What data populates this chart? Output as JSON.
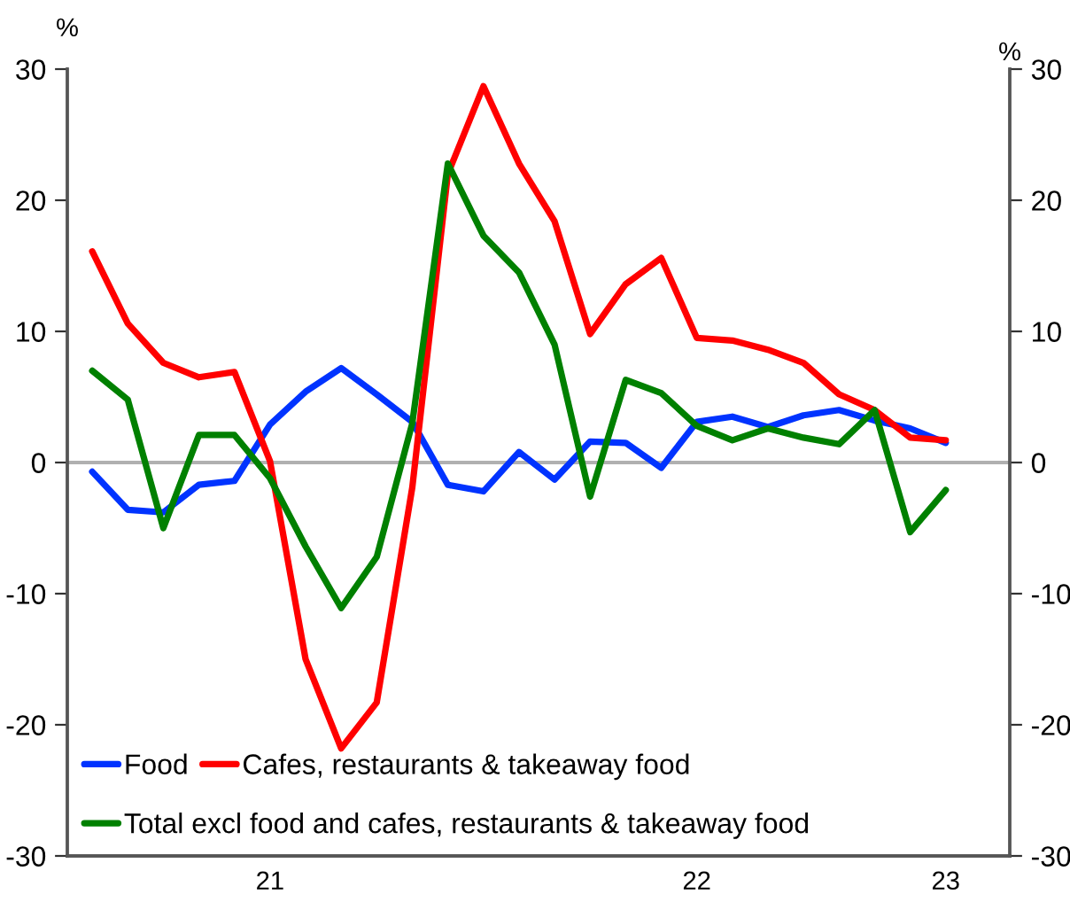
{
  "chart_data": {
    "type": "line",
    "ylabel": "%",
    "y2label": "%",
    "categories": [
      null,
      null,
      null,
      null,
      null,
      "21",
      null,
      null,
      null,
      null,
      null,
      null,
      null,
      null,
      null,
      null,
      null,
      "22",
      null,
      null,
      null,
      null,
      null,
      null,
      "23"
    ],
    "series": [
      {
        "name": "Food",
        "color": "#0033ff",
        "values": [
          -0.7,
          -3.6,
          -3.8,
          -1.7,
          -1.4,
          2.9,
          5.4,
          7.2,
          5.2,
          3.1,
          -1.7,
          -2.2,
          0.8,
          -1.3,
          1.6,
          1.5,
          -0.4,
          3.1,
          3.5,
          2.7,
          3.6,
          4.0,
          3.2,
          2.6,
          1.5
        ]
      },
      {
        "name": "Cafes, restaurants & takeaway food",
        "color": "#ff0000",
        "values": [
          16.1,
          10.6,
          7.6,
          6.5,
          6.9,
          0.1,
          -15.0,
          -21.8,
          -18.3,
          -1.9,
          22.0,
          28.7,
          22.8,
          18.4,
          9.8,
          13.6,
          15.6,
          9.5,
          9.3,
          8.6,
          7.6,
          5.2,
          4.0,
          1.9,
          1.7
        ]
      },
      {
        "name": "Total excl food and cafes, restaurants & takeaway food",
        "color": "#008000",
        "values": [
          7.0,
          4.8,
          -5.0,
          2.1,
          2.1,
          -1.2,
          -6.4,
          -11.1,
          -7.2,
          3.0,
          22.8,
          17.3,
          14.5,
          9.0,
          -2.6,
          6.3,
          5.3,
          2.8,
          1.7,
          2.6,
          1.9,
          1.4,
          4.0,
          -5.3,
          -2.1
        ]
      }
    ],
    "ylim": [
      -30,
      30
    ],
    "yticks": [
      -30,
      -20,
      -10,
      0,
      10,
      20,
      30
    ],
    "y2lim": [
      -30,
      30
    ],
    "y2ticks": [
      -30,
      -20,
      -10,
      0,
      10,
      20,
      30
    ],
    "ref_lines": [
      {
        "axis": "y",
        "value": 0,
        "color": "#b0b0b0"
      }
    ],
    "legend": "bottom left",
    "grid": false,
    "marker": "none",
    "line_style": "solid"
  }
}
